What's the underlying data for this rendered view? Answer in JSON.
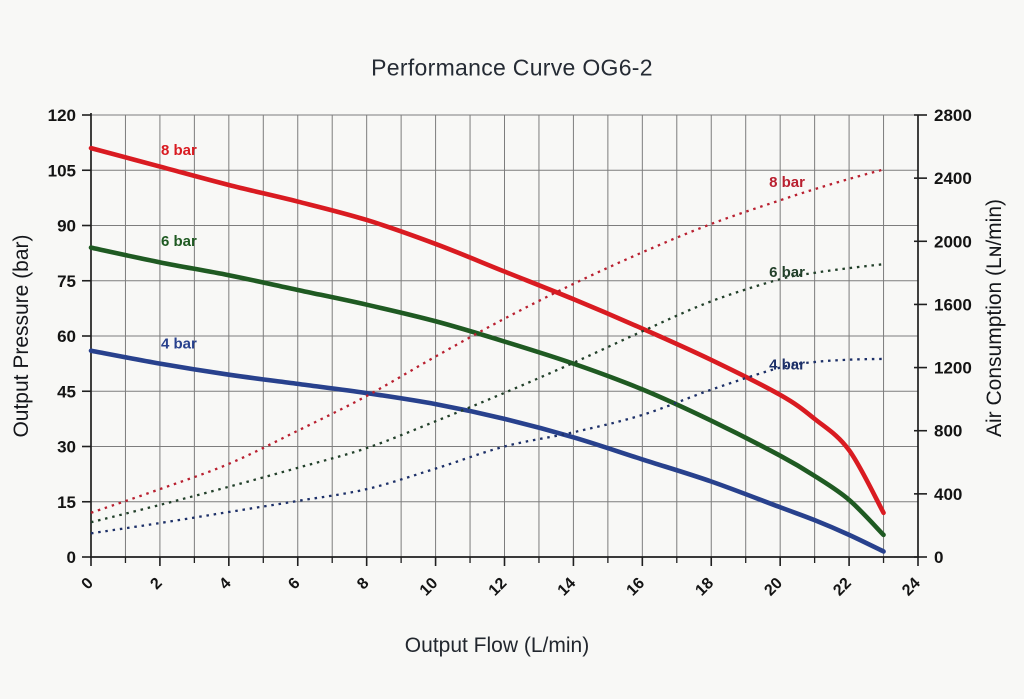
{
  "title": "Performance Curve OG6-2",
  "colors": {
    "background": "#f8f8f6",
    "grid": "#7d7d7d",
    "axis_spine": "#1f1f1f",
    "tick_text": "#141414",
    "pressure_8bar": "#d91b21",
    "pressure_6bar": "#1f5a22",
    "pressure_4bar": "#28418d",
    "air_8bar": "#b92030",
    "air_6bar": "#22402a",
    "air_4bar": "#1d3068"
  },
  "chart_data": {
    "type": "line",
    "title": "Performance Curve OG6-2",
    "xlabel": "Output Flow (L/min)",
    "ylabel_left": "Output Pressure (bar)",
    "ylabel_right": "Air Consumption (Lɴ/min)",
    "x_range": [
      0,
      24
    ],
    "x_major_ticks": [
      0,
      2,
      4,
      6,
      8,
      10,
      12,
      14,
      16,
      18,
      20,
      22,
      24
    ],
    "x_minor_ticks": [
      1,
      3,
      5,
      7,
      9,
      11,
      13,
      15,
      17,
      19,
      21,
      23
    ],
    "y_left_range": [
      0,
      120
    ],
    "y_left_ticks": [
      0,
      15,
      30,
      45,
      60,
      75,
      90,
      105,
      120
    ],
    "y_right_range": [
      0,
      2800
    ],
    "y_right_ticks": [
      0,
      400,
      800,
      1200,
      1600,
      2000,
      2400,
      2800
    ],
    "grid": true,
    "legend_position": "inline-labels",
    "series": [
      {
        "name": "pressure-8bar",
        "label": "8 bar",
        "axis": "left",
        "style": "solid",
        "color_key": "pressure_8bar",
        "x": [
          0,
          2,
          4,
          6,
          8,
          10,
          12,
          14,
          16,
          18,
          20,
          21,
          22,
          23
        ],
        "y": [
          111,
          106,
          101,
          96.5,
          91.5,
          85,
          77.5,
          70,
          62,
          53.5,
          44,
          37.5,
          29,
          12
        ]
      },
      {
        "name": "pressure-6bar",
        "label": "6 bar",
        "axis": "left",
        "style": "solid",
        "color_key": "pressure_6bar",
        "x": [
          0,
          2,
          4,
          6,
          8,
          10,
          12,
          14,
          16,
          18,
          20,
          21,
          22,
          23
        ],
        "y": [
          84,
          80,
          76.5,
          72.5,
          68.5,
          64,
          58.5,
          52.5,
          45.5,
          37,
          27.5,
          22,
          15.5,
          6
        ]
      },
      {
        "name": "pressure-4bar",
        "label": "4 bar",
        "axis": "left",
        "style": "solid",
        "color_key": "pressure_4bar",
        "x": [
          0,
          2,
          4,
          6,
          8,
          10,
          12,
          14,
          16,
          18,
          20,
          21,
          22,
          23
        ],
        "y": [
          56,
          52.5,
          49.5,
          47,
          44.5,
          41.5,
          37.5,
          32.5,
          26.5,
          20.5,
          13.5,
          10,
          6,
          1.5
        ]
      },
      {
        "name": "air-8bar",
        "label": "8 bar",
        "axis": "right",
        "style": "dotted",
        "color_key": "air_8bar",
        "x": [
          0,
          2,
          4,
          6,
          8,
          10,
          12,
          14,
          16,
          18,
          20,
          21,
          22,
          23
        ],
        "y": [
          280,
          430,
          590,
          800,
          1020,
          1270,
          1510,
          1730,
          1930,
          2110,
          2260,
          2330,
          2395,
          2455
        ]
      },
      {
        "name": "air-6bar",
        "label": "6 bar",
        "axis": "right",
        "style": "dotted",
        "color_key": "air_6bar",
        "x": [
          0,
          2,
          4,
          6,
          8,
          10,
          12,
          14,
          16,
          18,
          20,
          21,
          22,
          23
        ],
        "y": [
          220,
          330,
          445,
          565,
          690,
          860,
          1040,
          1230,
          1430,
          1620,
          1760,
          1800,
          1830,
          1855
        ]
      },
      {
        "name": "air-4bar",
        "label": "4 bar",
        "axis": "right",
        "style": "dotted",
        "color_key": "air_4bar",
        "x": [
          0,
          2,
          4,
          6,
          8,
          10,
          12,
          14,
          16,
          18,
          20,
          21,
          22,
          23
        ],
        "y": [
          150,
          215,
          285,
          355,
          430,
          560,
          700,
          790,
          900,
          1060,
          1200,
          1235,
          1250,
          1255
        ]
      }
    ],
    "curve_labels": [
      {
        "text": "8 bar",
        "x": 2.55,
        "y_bar": 110.5,
        "color_key": "pressure_8bar",
        "for": "pressure-8bar"
      },
      {
        "text": "6 bar",
        "x": 2.55,
        "y_bar": 85.8,
        "color_key": "pressure_6bar",
        "for": "pressure-6bar"
      },
      {
        "text": "4 bar",
        "x": 2.55,
        "y_bar": 58.0,
        "color_key": "pressure_4bar",
        "for": "pressure-4bar"
      },
      {
        "text": "8 bar",
        "x": 20.2,
        "y_bar": 101.8,
        "color_key": "air_8bar",
        "for": "air-8bar"
      },
      {
        "text": "6 bar",
        "x": 20.2,
        "y_bar": 77.4,
        "color_key": "air_6bar",
        "for": "air-6bar"
      },
      {
        "text": "4 bar",
        "x": 20.2,
        "y_bar": 52.2,
        "color_key": "air_4bar",
        "for": "air-4bar"
      }
    ]
  }
}
